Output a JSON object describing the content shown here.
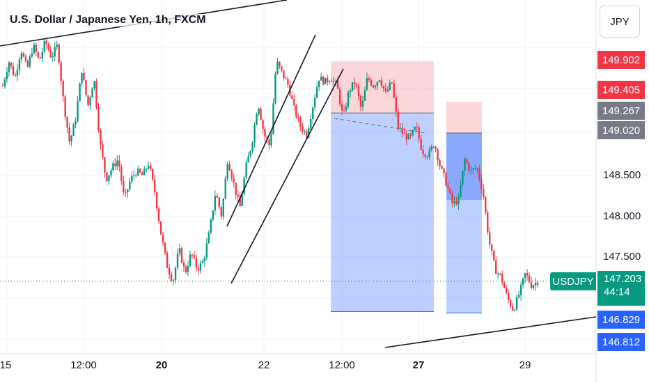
{
  "chart_data": {
    "type": "candlestick",
    "title": "U.S. Dollar / Japanese Yen, 1h, FXCM",
    "currency_button": "JPY",
    "y_axis": {
      "range": [
        146.55,
        150.2
      ],
      "ticks": [
        "148.500",
        "148.000",
        "147.500"
      ]
    },
    "x_axis": {
      "ticks": [
        {
          "label": "15",
          "bold": false
        },
        {
          "label": "12:00",
          "bold": false
        },
        {
          "label": "20",
          "bold": true
        },
        {
          "label": "22",
          "bold": false
        },
        {
          "label": "12:00",
          "bold": false
        },
        {
          "label": "27",
          "bold": true
        },
        {
          "label": "29",
          "bold": false
        }
      ]
    },
    "price_labels": [
      {
        "value": "149.902",
        "color": "#f23645"
      },
      {
        "value": "149.405",
        "color": "#f23645"
      },
      {
        "value": "149.267",
        "color": "#787b86"
      },
      {
        "value": "149.020",
        "color": "#787b86"
      },
      {
        "value": "146.829",
        "color": "#2962ff"
      },
      {
        "value": "146.812",
        "color": "#2962ff"
      }
    ],
    "current": {
      "symbol": "USDJPY",
      "price": "147.203",
      "price_value": 147.203,
      "countdown": "44:14",
      "color": "#089981"
    },
    "positions": [
      {
        "type": "short",
        "entry": 149.267,
        "stop": 149.902,
        "target": 146.829
      },
      {
        "type": "short",
        "entry": 149.02,
        "stop": 149.405,
        "target": 146.812
      }
    ],
    "price_path": [
      149.6,
      149.9,
      149.7,
      150.05,
      149.8,
      150.1,
      149.9,
      150.15,
      149.95,
      150.1,
      149.4,
      148.9,
      149.2,
      149.8,
      149.35,
      149.7,
      148.9,
      148.45,
      148.6,
      148.7,
      148.2,
      148.45,
      148.55,
      148.5,
      148.65,
      148.3,
      147.8,
      147.4,
      147.2,
      147.6,
      147.3,
      147.55,
      147.35,
      147.45,
      147.8,
      148.3,
      148.0,
      148.7,
      148.4,
      148.1,
      148.6,
      148.9,
      149.4,
      149.0,
      148.85,
      149.9,
      149.75,
      149.6,
      149.3,
      149.1,
      149.0,
      149.35,
      149.7,
      149.65,
      149.7,
      149.6,
      149.2,
      149.55,
      149.65,
      149.3,
      149.7,
      149.6,
      149.7,
      149.5,
      149.65,
      149.1,
      149.0,
      148.95,
      149.1,
      148.8,
      148.75,
      148.9,
      148.6,
      148.4,
      148.15,
      148.2,
      148.7,
      148.55,
      148.6,
      148.3,
      147.7,
      147.35,
      147.25,
      147.0,
      146.85,
      147.05,
      147.3,
      147.15,
      147.2
    ]
  }
}
